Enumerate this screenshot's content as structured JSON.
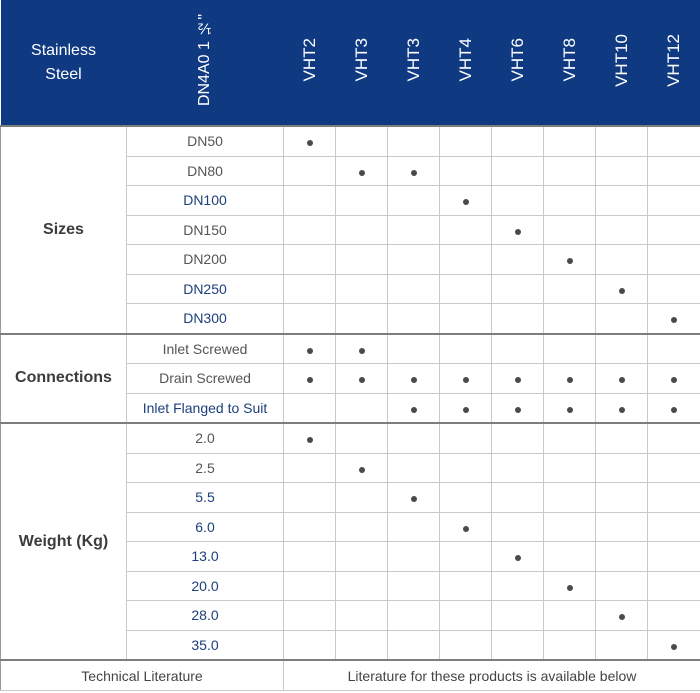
{
  "header": {
    "corner_line1": "Stainless",
    "corner_line2": "Steel",
    "size_col_label": "DN4A0 1 ½\"",
    "models": [
      "VHT2",
      "VHT3",
      "VHT3",
      "VHT4",
      "VHT6",
      "VHT8",
      "VHT10",
      "VHT12"
    ]
  },
  "groups": [
    {
      "name": "Sizes",
      "rows": [
        {
          "label": "DN50",
          "blue": false,
          "marks": [
            1,
            0,
            0,
            0,
            0,
            0,
            0,
            0
          ]
        },
        {
          "label": "DN80",
          "blue": false,
          "marks": [
            0,
            1,
            1,
            0,
            0,
            0,
            0,
            0
          ]
        },
        {
          "label": "DN100",
          "blue": true,
          "marks": [
            0,
            0,
            0,
            1,
            0,
            0,
            0,
            0
          ]
        },
        {
          "label": "DN150",
          "blue": false,
          "marks": [
            0,
            0,
            0,
            0,
            1,
            0,
            0,
            0
          ]
        },
        {
          "label": "DN200",
          "blue": false,
          "marks": [
            0,
            0,
            0,
            0,
            0,
            1,
            0,
            0
          ]
        },
        {
          "label": "DN250",
          "blue": true,
          "marks": [
            0,
            0,
            0,
            0,
            0,
            0,
            1,
            0
          ]
        },
        {
          "label": "DN300",
          "blue": true,
          "marks": [
            0,
            0,
            0,
            0,
            0,
            0,
            0,
            1
          ]
        }
      ]
    },
    {
      "name": "Connections",
      "rows": [
        {
          "label": "Inlet Screwed",
          "blue": false,
          "marks": [
            1,
            1,
            0,
            0,
            0,
            0,
            0,
            0
          ]
        },
        {
          "label": "Drain Screwed",
          "blue": false,
          "marks": [
            1,
            1,
            1,
            1,
            1,
            1,
            1,
            1
          ]
        },
        {
          "label": "Inlet Flanged to Suit",
          "blue": true,
          "marks": [
            0,
            0,
            1,
            1,
            1,
            1,
            1,
            1
          ]
        }
      ]
    },
    {
      "name": "Weight (Kg)",
      "rows": [
        {
          "label": "2.0",
          "blue": false,
          "marks": [
            1,
            0,
            0,
            0,
            0,
            0,
            0,
            0
          ]
        },
        {
          "label": "2.5",
          "blue": false,
          "marks": [
            0,
            1,
            0,
            0,
            0,
            0,
            0,
            0
          ]
        },
        {
          "label": "5.5",
          "blue": true,
          "marks": [
            0,
            0,
            1,
            0,
            0,
            0,
            0,
            0
          ]
        },
        {
          "label": "6.0",
          "blue": true,
          "marks": [
            0,
            0,
            0,
            1,
            0,
            0,
            0,
            0
          ]
        },
        {
          "label": "13.0",
          "blue": true,
          "marks": [
            0,
            0,
            0,
            0,
            1,
            0,
            0,
            0
          ]
        },
        {
          "label": "20.0",
          "blue": true,
          "marks": [
            0,
            0,
            0,
            0,
            0,
            1,
            0,
            0
          ]
        },
        {
          "label": "28.0",
          "blue": true,
          "marks": [
            0,
            0,
            0,
            0,
            0,
            0,
            1,
            0
          ]
        },
        {
          "label": "35.0",
          "blue": true,
          "marks": [
            0,
            0,
            0,
            0,
            0,
            0,
            0,
            1
          ]
        }
      ]
    }
  ],
  "footer": {
    "label": "Technical Literature",
    "text": "Literature for these products is available below"
  }
}
